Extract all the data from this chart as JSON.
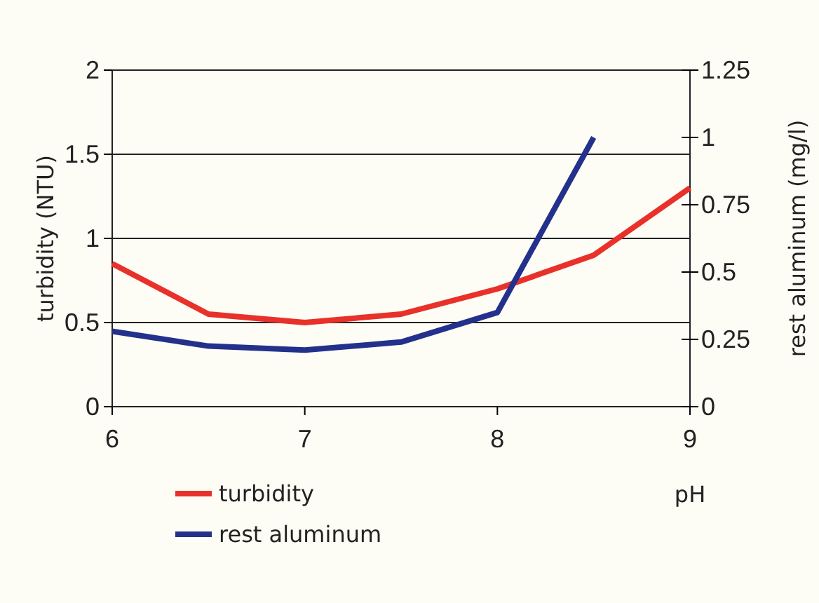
{
  "chart_data": {
    "type": "line",
    "xlabel": "pH",
    "ylabel": "turbidity (NTU)",
    "y2label": "rest aluminum (mg/l)",
    "x": [
      6,
      6.5,
      7,
      7.5,
      8,
      8.5,
      9
    ],
    "series": [
      {
        "name": "turbidity",
        "color": "#e8312a",
        "values": [
          0.85,
          0.55,
          0.5,
          0.55,
          0.7,
          0.9,
          1.3
        ]
      },
      {
        "name": "rest aluminum",
        "color": "#23318c",
        "axis": "y2",
        "x": [
          6,
          6.5,
          7,
          7.5,
          8,
          8.5
        ],
        "values": [
          0.28,
          0.225,
          0.21,
          0.24,
          0.35,
          1.0
        ]
      }
    ],
    "xlim": [
      6,
      9
    ],
    "xticks": [
      6,
      7,
      8,
      9
    ],
    "ylim": [
      0,
      2
    ],
    "yticks": [
      0,
      0.5,
      1,
      1.5,
      2
    ],
    "y2lim": [
      0,
      1.25
    ],
    "y2ticks": [
      0,
      0.25,
      0.5,
      0.75,
      1,
      1.25
    ],
    "grid": "y",
    "legend": "bottom left",
    "marker": "none",
    "line_style": "solid"
  }
}
